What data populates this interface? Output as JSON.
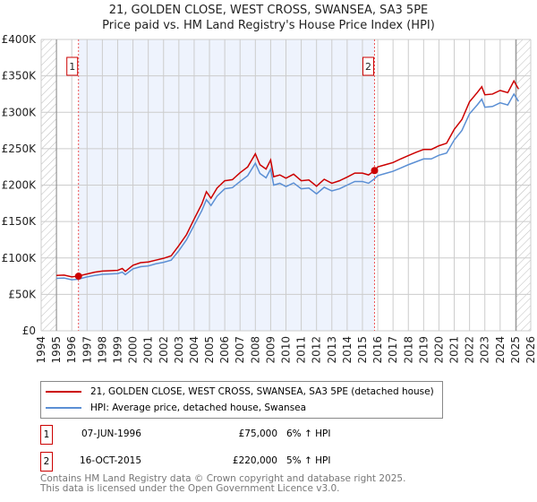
{
  "chart_data": {
    "type": "line",
    "title": "21, GOLDEN CLOSE, WEST CROSS, SWANSEA, SA3 5PE",
    "subtitle": "Price paid vs. HM Land Registry's House Price Index (HPI)",
    "xlim": [
      1994,
      2026
    ],
    "ylim": [
      0,
      400000
    ],
    "xticks": [
      "1994",
      "1995",
      "1996",
      "1997",
      "1998",
      "1999",
      "2000",
      "2001",
      "2002",
      "2003",
      "2004",
      "2005",
      "2006",
      "2007",
      "2008",
      "2009",
      "2010",
      "2011",
      "2012",
      "2013",
      "2014",
      "2015",
      "2016",
      "2017",
      "2018",
      "2019",
      "2020",
      "2021",
      "2022",
      "2023",
      "2024",
      "2025",
      "2026"
    ],
    "yticks": [
      {
        "v": 0,
        "label": "£0"
      },
      {
        "v": 50000,
        "label": "£50K"
      },
      {
        "v": 100000,
        "label": "£100K"
      },
      {
        "v": 150000,
        "label": "£150K"
      },
      {
        "v": 200000,
        "label": "£200K"
      },
      {
        "v": 250000,
        "label": "£250K"
      },
      {
        "v": 300000,
        "label": "£300K"
      },
      {
        "v": 350000,
        "label": "£350K"
      },
      {
        "v": 400000,
        "label": "£400K"
      }
    ],
    "x": [
      1995.0,
      1995.5,
      1996.0,
      1996.4,
      1997.0,
      1997.5,
      1998.0,
      1998.5,
      1999.0,
      1999.3,
      1999.5,
      2000.0,
      2000.5,
      2001.0,
      2001.5,
      2002.0,
      2002.5,
      2003.0,
      2003.5,
      2004.0,
      2004.5,
      2004.8,
      2005.1,
      2005.5,
      2006.0,
      2006.5,
      2007.0,
      2007.5,
      2008.0,
      2008.3,
      2008.7,
      2009.0,
      2009.2,
      2009.6,
      2010.0,
      2010.5,
      2011.0,
      2011.5,
      2012.0,
      2012.5,
      2013.0,
      2013.5,
      2014.0,
      2014.5,
      2015.0,
      2015.4,
      2015.8,
      2016.0,
      2016.5,
      2017.0,
      2017.5,
      2018.0,
      2018.5,
      2019.0,
      2019.5,
      2020.0,
      2020.5,
      2021.0,
      2021.5,
      2022.0,
      2022.5,
      2022.8,
      2023.0,
      2023.5,
      2024.0,
      2024.5,
      2024.9,
      2025.2
    ],
    "series": [
      {
        "name": "21, GOLDEN CLOSE, WEST CROSS, SWANSEA, SA3 5PE (detached house)",
        "color": "#cc0000",
        "values": [
          76000,
          76500,
          74000,
          75000,
          78000,
          80500,
          82000,
          82500,
          83000,
          85500,
          81500,
          90000,
          93500,
          94500,
          97000,
          99500,
          103000,
          117000,
          132000,
          153500,
          174000,
          191000,
          182000,
          196000,
          206000,
          207500,
          217000,
          225000,
          243000,
          228000,
          222000,
          234500,
          211500,
          214000,
          209500,
          215000,
          206000,
          207000,
          198500,
          208000,
          202500,
          206000,
          211000,
          216500,
          216500,
          214000,
          220000,
          225000,
          228000,
          231000,
          236000,
          240500,
          245000,
          249000,
          249000,
          254000,
          257500,
          276500,
          290000,
          314500,
          327000,
          335000,
          324000,
          325000,
          330000,
          327000,
          343000,
          332000
        ]
      },
      {
        "name": "HPI: Average price, detached house, Swansea",
        "color": "#5b8fd4",
        "values": [
          72000,
          72500,
          70000,
          70700,
          74000,
          76000,
          77500,
          78000,
          78500,
          80500,
          77000,
          85000,
          88000,
          89000,
          92000,
          94000,
          97000,
          110000,
          125000,
          145000,
          165000,
          180000,
          172000,
          185000,
          195000,
          196500,
          205000,
          213000,
          230000,
          216000,
          210000,
          222000,
          200000,
          202500,
          198000,
          203000,
          195000,
          196000,
          188000,
          197000,
          192000,
          195000,
          200000,
          205000,
          205000,
          202500,
          209000,
          213000,
          216000,
          219000,
          223500,
          228000,
          232000,
          236000,
          236000,
          241000,
          244000,
          262000,
          275000,
          298000,
          310000,
          318000,
          307000,
          308000,
          313000,
          310000,
          325000,
          315000
        ]
      }
    ],
    "sales": [
      {
        "id": "1",
        "x": 1996.44,
        "value": 75000
      },
      {
        "id": "2",
        "x": 2015.79,
        "value": 220000
      }
    ],
    "shaded_range": [
      1996.44,
      2015.79
    ],
    "hatched": [
      [
        1994,
        1995
      ],
      [
        2025.05,
        2026
      ]
    ]
  },
  "legend": {
    "property": "21, GOLDEN CLOSE, WEST CROSS, SWANSEA, SA3 5PE (detached house)",
    "hpi": "HPI: Average price, detached house, Swansea"
  },
  "transactions": [
    {
      "id": "1",
      "date": "07-JUN-1996",
      "price": "£75,000",
      "hpi": "6% ↑ HPI"
    },
    {
      "id": "2",
      "date": "16-OCT-2015",
      "price": "£220,000",
      "hpi": "5% ↑ HPI"
    }
  ],
  "footer": {
    "line1": "Contains HM Land Registry data © Crown copyright and database right 2025.",
    "line2": "This data is licensed under the Open Government Licence v3.0."
  }
}
